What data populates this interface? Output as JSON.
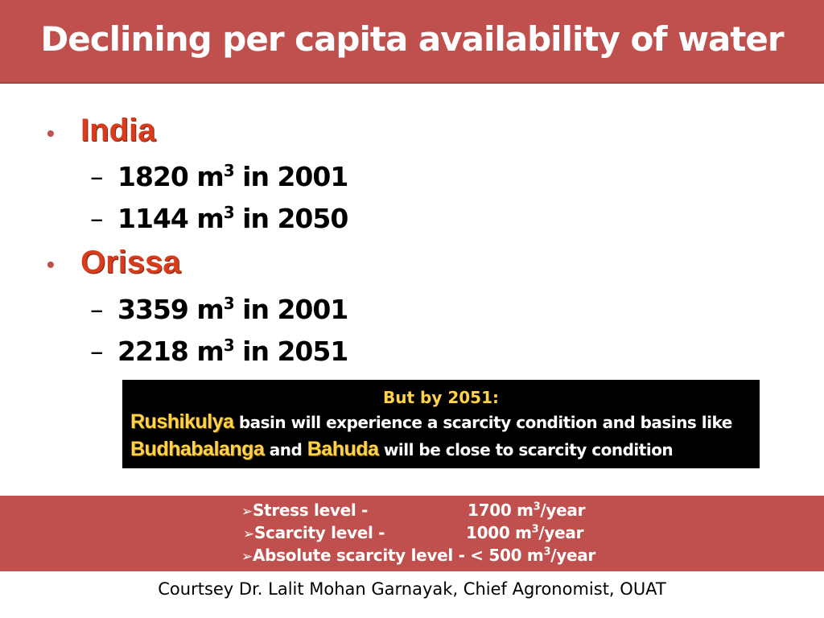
{
  "title": "Declining per capita availability of water",
  "sections": [
    {
      "bullet": "•",
      "region": "India",
      "stats": [
        {
          "dash": "–",
          "value": "1820 m",
          "sup": "3",
          "rest": " in 2001"
        },
        {
          "dash": "–",
          "value": "1144 m",
          "sup": "3",
          "rest": " in 2050"
        }
      ]
    },
    {
      "bullet": "•",
      "region": "Orissa",
      "stats": [
        {
          "dash": "–",
          "value": "3359 m",
          "sup": "3",
          "rest": " in 2001"
        },
        {
          "dash": "–",
          "value": "2218 m",
          "sup": "3",
          "rest": " in 2051"
        }
      ]
    }
  ],
  "callout": {
    "heading": "But by 2051:",
    "basin1": "Rushikulya",
    "text1": " basin will experience a scarcity condition and basins like",
    "basin2": "Budhabalanga",
    "text2": " and ",
    "basin3": "Bahuda",
    "text3": " will be close to scarcity condition"
  },
  "levels": [
    {
      "arrow": "➢",
      "label": "Stress level -",
      "value": "1700 m",
      "sup": "3",
      "unit": "/year"
    },
    {
      "arrow": "➢",
      "label": "Scarcity level -",
      "value": "1000 m",
      "sup": "3",
      "unit": "/year"
    },
    {
      "arrow": "➢",
      "label": "Absolute scarcity level - < 500 m",
      "sup": "3",
      "unit": "/year"
    }
  ],
  "credit": "Courtsey  Dr. Lalit Mohan Garnayak, Chief Agronomist, OUAT",
  "colors": {
    "header_band": "#c0504d",
    "region_text": "#d93b1e",
    "callout_bg": "#000000",
    "callout_highlight": "#ffd24a"
  }
}
